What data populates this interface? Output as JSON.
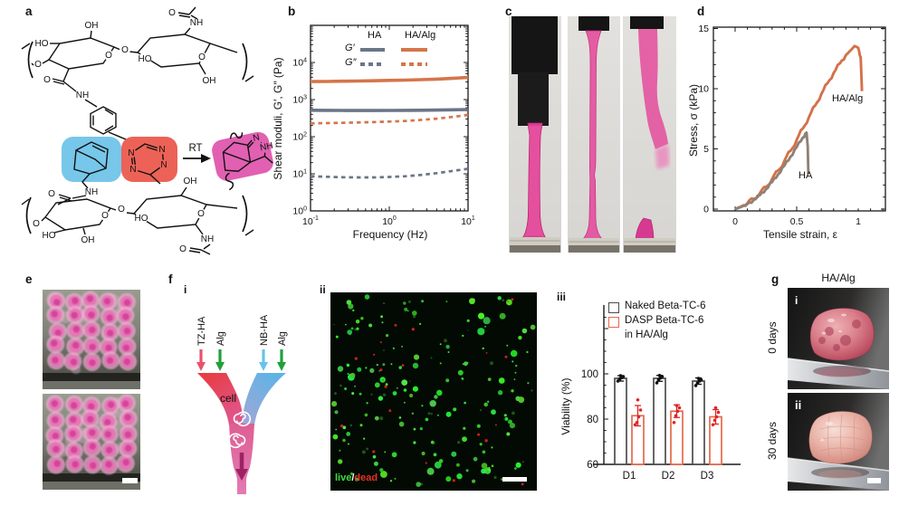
{
  "figure": {
    "panel_labels": {
      "a": "a",
      "b": "b",
      "c": "c",
      "d": "d",
      "e": "e",
      "f": "f",
      "g": "g"
    }
  },
  "panels": {
    "a": {
      "chem": [
        "OH",
        "HO",
        "O",
        "O",
        "O",
        "NH",
        "O",
        "HO",
        "O",
        "O",
        "NH",
        "OH",
        "RT",
        "N",
        "N",
        "N",
        "N",
        "NH",
        "N",
        "NH",
        "O",
        "O",
        "HO",
        "OH",
        "O",
        "O",
        "HO",
        "OH",
        "O",
        "NH",
        "O"
      ]
    },
    "f": {
      "i": {
        "label": "i",
        "in1": "TZ-HA",
        "in2": "Alg",
        "in3": "NB-HA",
        "in4": "Alg",
        "cell": "cell"
      },
      "ii": {
        "label": "ii",
        "live": "live",
        "slash": "/",
        "dead": "dead"
      },
      "iii": {
        "label": "iii"
      }
    },
    "g": {
      "title": "HA/Alg",
      "row1": "0 days",
      "row2": "30 days",
      "i": "i",
      "ii": "ii"
    }
  },
  "chart_data": [
    {
      "id": "b",
      "type": "line",
      "xscale": "log",
      "yscale": "log",
      "title": "",
      "xlabel": "Frequency (Hz)",
      "ylabel": "Shear moduli, G′, G″ (Pa)",
      "xlim": [
        0.1,
        10
      ],
      "ylim": [
        1,
        100000
      ],
      "legend": {
        "col1": "HA",
        "col2": "HA/Alg",
        "row1": "G′",
        "row2": "G″"
      },
      "legend_position": "upper left inside",
      "xticks": [
        {
          "v": 0.1,
          "base": "10",
          "exp": "-1"
        },
        {
          "v": 1,
          "base": "10",
          "exp": "0"
        },
        {
          "v": 10,
          "base": "10",
          "exp": "1"
        }
      ],
      "yticks": [
        {
          "v": 1,
          "base": "10",
          "exp": "0"
        },
        {
          "v": 10,
          "base": "10",
          "exp": "1"
        },
        {
          "v": 100,
          "base": "10",
          "exp": "2"
        },
        {
          "v": 1000,
          "base": "10",
          "exp": "3"
        },
        {
          "v": 10000,
          "base": "10",
          "exp": "4"
        }
      ],
      "series": [
        {
          "name": "HA/Alg G′",
          "color": "#d5754a",
          "dash": false,
          "width": 3.6,
          "x": [
            0.1,
            0.16,
            0.25,
            0.4,
            0.63,
            1,
            1.6,
            2.5,
            4,
            6.3,
            10
          ],
          "y": [
            3050,
            3080,
            3120,
            3160,
            3220,
            3280,
            3350,
            3440,
            3560,
            3720,
            3950
          ]
        },
        {
          "name": "HA G′",
          "color": "#6b7587",
          "dash": false,
          "width": 3.6,
          "x": [
            0.1,
            0.16,
            0.25,
            0.4,
            0.63,
            1,
            1.6,
            2.5,
            4,
            6.3,
            10
          ],
          "y": [
            515,
            512,
            510,
            508,
            508,
            510,
            512,
            516,
            521,
            529,
            540
          ]
        },
        {
          "name": "HA/Alg G″",
          "color": "#d5754a",
          "dash": true,
          "width": 2.7,
          "x": [
            0.1,
            0.16,
            0.25,
            0.4,
            0.63,
            1,
            1.6,
            2.5,
            4,
            6.3,
            10
          ],
          "y": [
            228,
            232,
            236,
            241,
            247,
            255,
            266,
            282,
            306,
            340,
            385
          ]
        },
        {
          "name": "HA G″",
          "color": "#6b7587",
          "dash": true,
          "width": 2.7,
          "x": [
            0.1,
            0.16,
            0.25,
            0.4,
            0.63,
            1,
            1.6,
            2.5,
            4,
            6.3,
            10
          ],
          "y": [
            8.6,
            8.3,
            8.1,
            8.0,
            8.0,
            8.2,
            8.6,
            9.3,
            10.4,
            11.9,
            13.6
          ]
        }
      ]
    },
    {
      "id": "d",
      "type": "line",
      "title": "",
      "xlabel": "Tensile strain, ε",
      "ylabel": "Stress, σ (kPa)",
      "xlim": [
        0,
        1.22
      ],
      "ylim": [
        0,
        15.2
      ],
      "xticks": [
        {
          "v": 0,
          "label": "0"
        },
        {
          "v": 0.5,
          "label": "0.5"
        },
        {
          "v": 1,
          "label": "1"
        }
      ],
      "yticks": [
        {
          "v": 0,
          "label": "0"
        },
        {
          "v": 5,
          "label": "5"
        },
        {
          "v": 10,
          "label": "10"
        },
        {
          "v": 15,
          "label": "15"
        }
      ],
      "annotations": [
        {
          "text": "HA/Alg"
        },
        {
          "text": "HA"
        }
      ],
      "series": [
        {
          "name": "HA/Alg",
          "color": "#d4714a",
          "width": 2.9,
          "points": [
            [
              0,
              0
            ],
            [
              0.05,
              0.22
            ],
            [
              0.1,
              0.5
            ],
            [
              0.15,
              0.85
            ],
            [
              0.2,
              1.3
            ],
            [
              0.25,
              1.85
            ],
            [
              0.3,
              2.5
            ],
            [
              0.35,
              3.2
            ],
            [
              0.4,
              4.0
            ],
            [
              0.45,
              4.85
            ],
            [
              0.5,
              5.75
            ],
            [
              0.55,
              6.7
            ],
            [
              0.6,
              7.65
            ],
            [
              0.65,
              8.6
            ],
            [
              0.7,
              9.55
            ],
            [
              0.75,
              10.45
            ],
            [
              0.8,
              11.3
            ],
            [
              0.85,
              12.1
            ],
            [
              0.9,
              12.8
            ],
            [
              0.94,
              13.2
            ],
            [
              0.97,
              13.55
            ],
            [
              1.0,
              13.4
            ],
            [
              1.02,
              12.6
            ],
            [
              1.03,
              9.8
            ]
          ]
        },
        {
          "name": "HA",
          "color": "#8f8175",
          "width": 2.9,
          "points": [
            [
              0,
              0
            ],
            [
              0.05,
              0.18
            ],
            [
              0.1,
              0.42
            ],
            [
              0.15,
              0.75
            ],
            [
              0.2,
              1.15
            ],
            [
              0.25,
              1.65
            ],
            [
              0.3,
              2.25
            ],
            [
              0.35,
              2.9
            ],
            [
              0.4,
              3.6
            ],
            [
              0.45,
              4.35
            ],
            [
              0.5,
              5.15
            ],
            [
              0.55,
              5.95
            ],
            [
              0.58,
              6.35
            ],
            [
              0.59,
              5.2
            ],
            [
              0.595,
              2.9
            ]
          ]
        }
      ]
    },
    {
      "id": "f-iii",
      "type": "bar",
      "title": "",
      "xlabel": "",
      "ylabel": "Viability (%)",
      "ylim": [
        60,
        130
      ],
      "categories": [
        "D1",
        "D2",
        "D3"
      ],
      "yticks": [
        {
          "v": 60,
          "label": "60"
        },
        {
          "v": 80,
          "label": "80"
        },
        {
          "v": 100,
          "label": "100"
        }
      ],
      "legend": [
        "Naked Beta-TC-6",
        "DASP Beta-TC-6",
        "in HA/Alg"
      ],
      "series": [
        {
          "name": "Naked Beta-TC-6",
          "color": "#4d4d4d",
          "dot_color": "#111111",
          "values": [
            98,
            98,
            96.8
          ],
          "errors": [
            1.2,
            1.3,
            1.4
          ],
          "dots": [
            [
              96.8,
              97.8,
              98.3,
              98.8,
              99.2
            ],
            [
              96,
              97.5,
              98.2,
              98.8,
              99.3
            ],
            [
              94.8,
              96,
              96.8,
              97.4,
              98
            ]
          ]
        },
        {
          "name": "DASP Beta-TC-6 in HA/Alg",
          "color": "#e5694d",
          "dot_color": "#e02424",
          "values": [
            81.5,
            83.5,
            81
          ],
          "errors": [
            4.5,
            2.8,
            3.2
          ],
          "dots": [
            [
              77.5,
              78.5,
              81,
              84,
              88.5
            ],
            [
              78.5,
              81.5,
              83.5,
              85,
              86
            ],
            [
              77.5,
              79.5,
              81,
              83,
              85
            ]
          ]
        }
      ]
    }
  ],
  "colors": {
    "orange": "#d5754a",
    "slate": "#6b7587",
    "taupe": "#8f8175",
    "gel_pink": "#e4459a",
    "highlight_blue": "#76c7ea",
    "highlight_red": "#ec6257",
    "highlight_magenta": "#e160b2",
    "arrow_tz": "#e8526e",
    "arrow_alg": "#21a038",
    "arrow_nb": "#66c3ea",
    "arrow_out": "#9c2364",
    "live_green": "#3ddd3d",
    "dead_red": "#e8302a"
  }
}
